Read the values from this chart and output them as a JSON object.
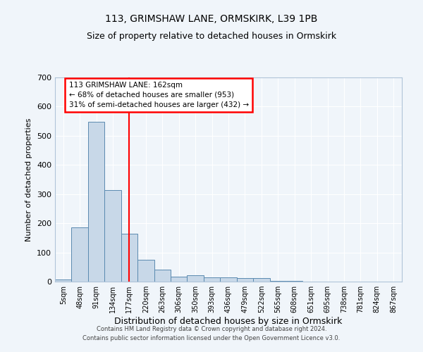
{
  "title1": "113, GRIMSHAW LANE, ORMSKIRK, L39 1PB",
  "title2": "Size of property relative to detached houses in Ormskirk",
  "xlabel": "Distribution of detached houses by size in Ormskirk",
  "ylabel": "Number of detached properties",
  "bin_labels": [
    "5sqm",
    "48sqm",
    "91sqm",
    "134sqm",
    "177sqm",
    "220sqm",
    "263sqm",
    "306sqm",
    "350sqm",
    "393sqm",
    "436sqm",
    "479sqm",
    "522sqm",
    "565sqm",
    "608sqm",
    "651sqm",
    "695sqm",
    "738sqm",
    "781sqm",
    "824sqm",
    "867sqm"
  ],
  "bin_values": [
    8,
    186,
    547,
    315,
    165,
    75,
    42,
    18,
    22,
    14,
    14,
    12,
    13,
    2,
    2,
    0,
    0,
    0,
    0,
    0,
    1
  ],
  "bar_color": "#c8d8e8",
  "bar_edge_color": "#5a8ab0",
  "vline_x": 4.0,
  "vline_color": "red",
  "annotation_text": "113 GRIMSHAW LANE: 162sqm\n← 68% of detached houses are smaller (953)\n31% of semi-detached houses are larger (432) →",
  "annotation_box_color": "white",
  "annotation_box_edge_color": "red",
  "ylim": [
    0,
    700
  ],
  "yticks": [
    0,
    100,
    200,
    300,
    400,
    500,
    600,
    700
  ],
  "footer1": "Contains HM Land Registry data © Crown copyright and database right 2024.",
  "footer2": "Contains public sector information licensed under the Open Government Licence v3.0.",
  "bg_color": "#f0f5fa",
  "plot_bg_color": "#f0f5fa",
  "title1_fontsize": 10,
  "title2_fontsize": 9,
  "xlabel_fontsize": 9,
  "ylabel_fontsize": 8,
  "tick_fontsize": 7,
  "footer_fontsize": 6
}
